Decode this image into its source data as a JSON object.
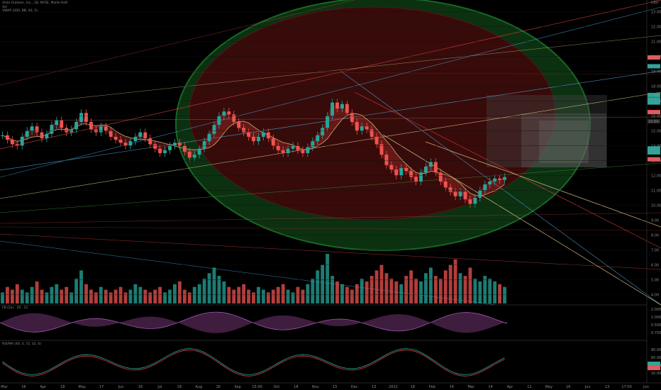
{
  "legend": {
    "line1": "Vista Outdoor, Inc., 1D, NYSE, Mollie Raft",
    "line2": "Vol",
    "line3": "VWAP (200, BB, 40, 5)"
  },
  "currency": "USD",
  "panes": {
    "osc1": "FB (2a) · 20 · 12",
    "osc2": "RSI/MA (40, 3, 72, 32, 6)"
  },
  "colors": {
    "up": "#26a69a",
    "down": "#ef5350",
    "ellipse_outer": "#1b7a2a",
    "ellipse_inner": "#7a1616",
    "background": "#000000"
  },
  "chart_data": {
    "type": "candlestick",
    "y_ticks": [
      "23.00",
      "22.00",
      "21.00",
      "20.00",
      "19.00",
      "18.00",
      "17.00",
      "16.00",
      "15.00",
      "14.00",
      "13.00",
      "12.00",
      "11.00",
      "10.00",
      "9.00",
      "8.00",
      "7.00",
      "6.00",
      "5.00",
      "4.00"
    ],
    "ylim": [
      3.4,
      23.6
    ],
    "x_ticks": [
      "Mar",
      "16",
      "Apr",
      "18",
      "May",
      "17",
      "Jun",
      "16",
      "Jul",
      "19",
      "Aug",
      "16",
      "Sep",
      "15:00",
      "Oct",
      "18",
      "Nov",
      "15",
      "Dec",
      "13",
      "2022",
      "18",
      "Feb",
      "14",
      "Mar",
      "14",
      "Apr",
      "11",
      "May",
      "16",
      "Jun",
      "13",
      "17:00",
      "Jun"
    ],
    "closes": [
      14.7,
      14.4,
      14.1,
      14.0,
      14.6,
      15.0,
      15.3,
      14.9,
      14.5,
      14.8,
      15.4,
      15.7,
      15.2,
      14.9,
      15.1,
      15.6,
      16.2,
      15.6,
      15.1,
      14.9,
      15.3,
      15.0,
      14.6,
      14.4,
      14.2,
      14.0,
      14.3,
      14.6,
      14.9,
      14.5,
      14.1,
      13.8,
      13.5,
      13.7,
      14.0,
      14.2,
      14.0,
      13.6,
      13.2,
      13.4,
      13.8,
      14.3,
      14.8,
      15.4,
      16.0,
      16.3,
      16.1,
      15.6,
      15.2,
      14.9,
      14.6,
      14.3,
      14.6,
      14.9,
      14.5,
      14.0,
      13.7,
      13.5,
      13.8,
      14.0,
      13.7,
      13.5,
      13.9,
      14.3,
      14.7,
      15.2,
      16.0,
      16.9,
      16.5,
      16.8,
      16.2,
      15.6,
      15.0,
      15.3,
      15.1,
      14.6,
      14.1,
      13.4,
      12.7,
      12.4,
      12.0,
      12.5,
      12.3,
      11.9,
      11.6,
      12.2,
      12.6,
      12.9,
      12.2,
      11.6,
      11.2,
      10.9,
      10.6,
      10.9,
      10.4,
      10.1,
      10.5,
      11.0,
      11.4,
      11.6,
      11.8,
      11.7,
      11.9
    ],
    "volume": [
      4,
      6,
      5,
      7,
      5,
      4,
      6,
      8,
      5,
      4,
      6,
      7,
      5,
      6,
      4,
      9,
      12,
      7,
      5,
      4,
      6,
      5,
      4,
      5,
      6,
      4,
      5,
      7,
      6,
      5,
      4,
      5,
      6,
      4,
      5,
      7,
      8,
      5,
      4,
      6,
      7,
      9,
      11,
      13,
      10,
      8,
      6,
      5,
      6,
      7,
      5,
      4,
      6,
      5,
      4,
      5,
      6,
      7,
      5,
      4,
      6,
      5,
      7,
      9,
      12,
      14,
      18,
      10,
      8,
      7,
      6,
      5,
      7,
      9,
      8,
      10,
      12,
      14,
      11,
      9,
      8,
      7,
      10,
      12,
      9,
      8,
      11,
      13,
      10,
      9,
      12,
      14,
      16,
      11,
      10,
      13,
      9,
      8,
      10,
      9,
      8,
      7,
      6
    ],
    "price_tags": [
      {
        "text": "19.93",
        "color": "#ef5350"
      },
      {
        "text": "19.34",
        "color": "#26a69a"
      },
      {
        "text": "17.41",
        "color": "#26a69a"
      },
      {
        "text": "17.11",
        "color": "#26a69a"
      },
      {
        "text": "16.90",
        "color": "#26a69a"
      },
      {
        "text": "16.26",
        "color": "#ef5350"
      },
      {
        "text": "15.64",
        "color": "#2a2a2a"
      },
      {
        "text": "13.82",
        "color": "#26a69a"
      },
      {
        "text": "13.55",
        "color": "#26a69a"
      },
      {
        "text": "13.09",
        "color": "#ef5350"
      }
    ],
    "osc1_tags": [
      "2.0000",
      "1.0000",
      "0.5000",
      "0.7500"
    ],
    "osc2_ticks": [
      "80.00",
      "60.00",
      "40.00",
      "20.00"
    ],
    "osc2_tags": [
      "45.23",
      "39.63"
    ]
  }
}
